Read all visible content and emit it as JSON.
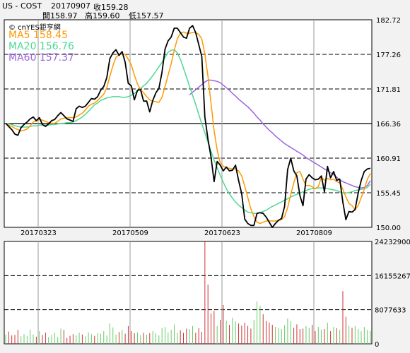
{
  "header": {
    "symbol": "US - COST",
    "date": "20170907",
    "close": "收159.28",
    "open": "開158.97",
    "high": "高159.60",
    "low": "低157.57",
    "watermark": "© cnYES鉅亨網"
  },
  "ma": [
    {
      "label": "MA5 158.45",
      "color": "#ff9900"
    },
    {
      "label": "MA20 156.76",
      "color": "#4dd891"
    },
    {
      "label": "MA60 157.37",
      "color": "#9966dd"
    }
  ],
  "colors": {
    "price": "#000000",
    "volume": "#66cc66",
    "volume_hilite": "#cc3333",
    "reference": "#000000"
  },
  "chart_data": [
    {
      "type": "line",
      "title": "",
      "ylim": [
        150.0,
        182.72
      ],
      "y_ticks": [
        "182.72",
        "177.26",
        "171.81",
        "166.36",
        "160.91",
        "155.45",
        "150.00"
      ],
      "x_ticks": [
        "20170323",
        "20170509",
        "20170623",
        "20170809"
      ],
      "reference_line": 166.36,
      "series": [
        {
          "name": "Close",
          "values": [
            166.4,
            165.9,
            165.4,
            164.7,
            164.5,
            165.7,
            166.2,
            166.6,
            167.1,
            167.4,
            166.8,
            167.3,
            166.2,
            165.9,
            166.3,
            166.8,
            167.0,
            167.6,
            168.1,
            167.6,
            167.1,
            166.9,
            166.7,
            168.7,
            169.1,
            168.9,
            169.1,
            169.7,
            170.3,
            170.2,
            170.6,
            171.6,
            172.2,
            173.6,
            176.6,
            177.5,
            178.0,
            177.1,
            177.7,
            176.0,
            172.7,
            172.3,
            170.1,
            171.6,
            171.7,
            169.9,
            169.9,
            168.2,
            170.0,
            171.2,
            171.9,
            174.4,
            178.1,
            179.4,
            180.0,
            181.4,
            181.4,
            180.7,
            180.0,
            179.8,
            181.4,
            181.8,
            180.7,
            178.8,
            176.9,
            167.4,
            163.9,
            161.1,
            157.2,
            160.4,
            159.8,
            158.9,
            159.5,
            158.9,
            159.0,
            159.8,
            157.4,
            155.3,
            151.3,
            150.6,
            150.3,
            150.3,
            152.2,
            152.3,
            152.2,
            151.6,
            150.8,
            150.0,
            150.6,
            151.1,
            151.4,
            153.3,
            159.1,
            160.9,
            158.9,
            158.1,
            155.0,
            153.4,
            157.6,
            158.3,
            157.8,
            157.5,
            157.6,
            158.1,
            155.6,
            159.6,
            157.8,
            158.8,
            157.4,
            157.6,
            154.0,
            151.2,
            152.5,
            152.4,
            152.8,
            155.4,
            157.4,
            158.8,
            159.2,
            159.3
          ]
        },
        {
          "name": "MA5",
          "values": [
            166.4,
            166.1,
            165.9,
            165.6,
            165.4,
            165.2,
            165.3,
            165.5,
            166.0,
            166.6,
            166.8,
            167.0,
            166.9,
            166.7,
            166.5,
            166.4,
            166.4,
            166.7,
            167.1,
            167.2,
            167.3,
            167.3,
            167.3,
            167.4,
            167.7,
            168.0,
            168.5,
            169.1,
            169.4,
            169.6,
            170.0,
            170.5,
            171.0,
            172.0,
            173.8,
            175.5,
            176.8,
            177.2,
            177.3,
            177.3,
            176.5,
            175.6,
            174.0,
            172.6,
            171.7,
            171.2,
            170.6,
            170.1,
            169.9,
            169.8,
            169.7,
            170.5,
            172.2,
            174.0,
            175.8,
            177.9,
            179.7,
            180.6,
            180.8,
            180.6,
            180.6,
            180.7,
            180.7,
            180.4,
            179.7,
            177.3,
            173.8,
            169.6,
            165.2,
            162.2,
            160.2,
            159.6,
            159.4,
            159.3,
            159.2,
            159.2,
            158.9,
            158.1,
            156.5,
            154.7,
            152.9,
            151.7,
            150.8,
            150.6,
            150.8,
            151.0,
            151.0,
            151.0,
            151.0,
            151.1,
            151.2,
            151.7,
            153.1,
            155.2,
            157.0,
            158.6,
            158.8,
            157.6,
            156.6,
            156.6,
            156.4,
            156.1,
            156.4,
            157.9,
            157.4,
            157.7,
            157.5,
            157.6,
            157.2,
            157.0,
            156.0,
            154.8,
            153.8,
            153.4,
            152.8,
            153.4,
            154.7,
            156.0,
            157.6,
            158.5
          ]
        },
        {
          "name": "MA20",
          "values": [
            166.4,
            166.3,
            166.2,
            166.0,
            165.9,
            165.8,
            165.8,
            165.8,
            165.9,
            166.0,
            166.0,
            166.1,
            166.1,
            166.1,
            166.1,
            166.2,
            166.2,
            166.3,
            166.4,
            166.4,
            166.5,
            166.5,
            166.6,
            166.8,
            167.1,
            167.4,
            167.8,
            168.3,
            168.8,
            169.3,
            169.6,
            170.0,
            170.2,
            170.4,
            170.5,
            170.6,
            170.6,
            170.6,
            170.5,
            170.5,
            170.6,
            170.8,
            171.1,
            171.5,
            171.9,
            172.3,
            172.7,
            173.3,
            173.9,
            174.6,
            175.3,
            176.0,
            176.8,
            177.6,
            177.9,
            178.0,
            177.5,
            176.5,
            175.1,
            173.7,
            172.2,
            170.8,
            169.4,
            167.8,
            166.3,
            164.9,
            163.4,
            162.0,
            160.6,
            159.4,
            158.2,
            157.1,
            156.1,
            155.3,
            154.6,
            154.0,
            153.5,
            153.1,
            152.7,
            152.4,
            152.3,
            152.2,
            152.2,
            152.3,
            152.5,
            152.7,
            153.0,
            153.3,
            153.5,
            153.8,
            154.0,
            154.3,
            154.5,
            154.8,
            155.0,
            155.2,
            155.4,
            155.6,
            155.8,
            156.0,
            156.1,
            156.1,
            156.2,
            156.2,
            156.2,
            156.1,
            156.0,
            155.9,
            155.8,
            155.6,
            155.4,
            155.4,
            155.5,
            155.6,
            155.8,
            155.9,
            156.0,
            156.1,
            156.3,
            156.8
          ]
        },
        {
          "name": "MA60",
          "values": [
            null,
            null,
            null,
            null,
            null,
            null,
            null,
            null,
            null,
            null,
            null,
            null,
            null,
            null,
            null,
            null,
            null,
            null,
            null,
            null,
            null,
            null,
            null,
            null,
            null,
            null,
            null,
            null,
            null,
            null,
            null,
            null,
            null,
            null,
            null,
            null,
            null,
            null,
            null,
            null,
            null,
            null,
            null,
            null,
            null,
            null,
            null,
            null,
            null,
            null,
            null,
            null,
            null,
            null,
            null,
            null,
            null,
            null,
            null,
            null,
            170.9,
            171.3,
            171.7,
            172.1,
            172.5,
            172.9,
            173.2,
            173.2,
            173.1,
            173.0,
            172.8,
            172.4,
            172.0,
            171.6,
            171.1,
            170.7,
            170.2,
            169.8,
            169.4,
            169.0,
            168.5,
            168.0,
            167.4,
            166.9,
            166.3,
            165.8,
            165.3,
            164.9,
            164.4,
            164.0,
            163.6,
            163.2,
            162.9,
            162.6,
            162.3,
            162.0,
            161.7,
            161.4,
            161.0,
            160.7,
            160.4,
            160.1,
            159.8,
            159.5,
            159.2,
            158.9,
            158.6,
            158.3,
            157.9,
            157.5,
            157.2,
            157.0,
            156.8,
            156.6,
            156.4,
            156.3,
            156.2,
            156.3,
            156.6,
            157.37
          ]
        }
      ]
    },
    {
      "type": "bar",
      "title": "",
      "ylim": [
        0,
        24232900
      ],
      "y_ticks": [
        "24232900",
        "16155267",
        "8077633",
        "0"
      ],
      "values": [
        2200000,
        2900000,
        2000000,
        2100000,
        3300000,
        1800000,
        2300000,
        1900000,
        3300000,
        2200000,
        1700000,
        3000000,
        2100000,
        2600000,
        1600000,
        2100000,
        2600000,
        1600000,
        3600000,
        3300000,
        1400000,
        1900000,
        2300000,
        2000000,
        2600000,
        2200000,
        1800000,
        2700000,
        2300000,
        1900000,
        2500000,
        2400000,
        3000000,
        2000000,
        4800000,
        3900000,
        2200000,
        2800000,
        3300000,
        2400000,
        4200000,
        3000000,
        2500000,
        2700000,
        2000000,
        2600000,
        2200000,
        2500000,
        3000000,
        2500000,
        2000000,
        3700000,
        4000000,
        2700000,
        3300000,
        4600000,
        2600000,
        3200000,
        2600000,
        3600000,
        3500000,
        4200000,
        2600000,
        3700000,
        2800000,
        24200000,
        14000000,
        7200000,
        7800000,
        4200000,
        5700000,
        9200000,
        5500000,
        4500000,
        6200000,
        5300000,
        4800000,
        4300000,
        5000000,
        4200000,
        3600000,
        5700000,
        10000000,
        9000000,
        7000000,
        5400000,
        5000000,
        4500000,
        4000000,
        3800000,
        3500000,
        4400000,
        6000000,
        5400000,
        3800000,
        4600000,
        3500000,
        3600000,
        4200000,
        3800000,
        4500000,
        3000000,
        4000000,
        3300000,
        3500000,
        5000000,
        3000000,
        4000000,
        3700000,
        3300000,
        12500000,
        6400000,
        4300000,
        3800000,
        4200000,
        3500000,
        3000000,
        4000000,
        3300000,
        3000000
      ]
    }
  ]
}
